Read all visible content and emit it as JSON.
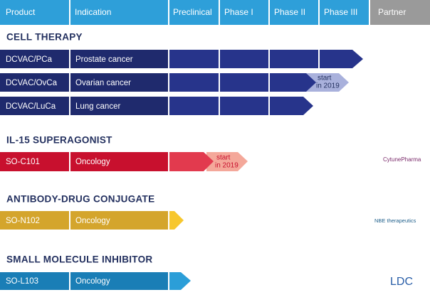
{
  "header": {
    "columns": [
      "Product",
      "Indication",
      "Preclinical",
      "Phase I",
      "Phase II",
      "Phase III",
      "Partner"
    ]
  },
  "sections": [
    {
      "title": "CELL THERAPY",
      "rows": [
        {
          "product": "DCVAC/PCa",
          "indication": "Prostate cancer"
        },
        {
          "product": "DCVAC/OvCa",
          "indication": "Ovarian cancer",
          "note": [
            "start",
            "in 2019"
          ]
        },
        {
          "product": "DCVAC/LuCa",
          "indication": "Lung cancer"
        }
      ]
    },
    {
      "title": "IL-15 SUPERAGONIST",
      "rows": [
        {
          "product": "SO-C101",
          "indication": "Oncology",
          "note": [
            "start",
            "in 2019"
          ]
        }
      ],
      "partner": "CytunePharma"
    },
    {
      "title": "ANTIBODY-DRUG CONJUGATE",
      "rows": [
        {
          "product": "SO-N102",
          "indication": "Oncology"
        }
      ],
      "partner": "NBE therapeutics"
    },
    {
      "title": "SMALL MOLECULE INHIBITOR",
      "rows": [
        {
          "product": "SO-L103",
          "indication": "Oncology"
        }
      ],
      "partner": "LDC"
    }
  ]
}
